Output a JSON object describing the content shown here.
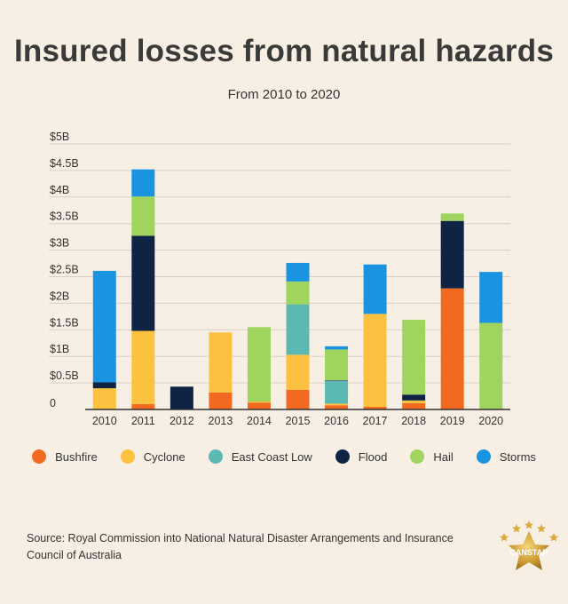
{
  "header": {
    "title": "Insured losses from natural hazards",
    "subtitle": "From 2010 to 2020"
  },
  "footer": {
    "source": "Source: Royal Commission into National Natural Disaster Arrangements and Insurance Council of Australia"
  },
  "logo": {
    "text": "CANSTAR"
  },
  "colors": {
    "background": "#f7efe3",
    "grid": "#d8d0c5",
    "axis": "#333333"
  },
  "chart_data": {
    "type": "bar",
    "stacked": true,
    "title": "Insured losses from natural hazards",
    "subtitle": "From 2010 to 2020",
    "categories": [
      "2010",
      "2011",
      "2012",
      "2013",
      "2014",
      "2015",
      "2016",
      "2017",
      "2018",
      "2019",
      "2020"
    ],
    "ylim": [
      0,
      5
    ],
    "yticks": [
      {
        "value": 0,
        "label": "0"
      },
      {
        "value": 0.5,
        "label": "$0.5B"
      },
      {
        "value": 1,
        "label": "$1B"
      },
      {
        "value": 1.5,
        "label": "$1.5B"
      },
      {
        "value": 2,
        "label": "$2B"
      },
      {
        "value": 2.5,
        "label": "$2.5B"
      },
      {
        "value": 3,
        "label": "$3B"
      },
      {
        "value": 3.5,
        "label": "$3.5B"
      },
      {
        "value": 4,
        "label": "$4B"
      },
      {
        "value": 4.5,
        "label": "$4.5B"
      },
      {
        "value": 5,
        "label": "$5B"
      }
    ],
    "grid": true,
    "legend": "bottom",
    "series": [
      {
        "name": "Bushfire",
        "color": "#f26a21",
        "values": [
          0,
          0.1,
          0,
          0.32,
          0.13,
          0.37,
          0.08,
          0.05,
          0.12,
          2.28,
          0
        ]
      },
      {
        "name": "Cyclone",
        "color": "#fbc13f",
        "values": [
          0.4,
          1.38,
          0,
          1.13,
          0.02,
          0.66,
          0.03,
          1.75,
          0.05,
          0,
          0
        ]
      },
      {
        "name": "East Coast Low",
        "color": "#5cb8b2",
        "values": [
          0,
          0,
          0,
          0,
          0,
          0.95,
          0.43,
          0,
          0,
          0,
          0
        ]
      },
      {
        "name": "Flood",
        "color": "#0f2445",
        "values": [
          0.11,
          1.79,
          0.43,
          0,
          0,
          0,
          0.01,
          0,
          0.11,
          1.27,
          0
        ]
      },
      {
        "name": "Hail",
        "color": "#9fd45f",
        "values": [
          0,
          0.74,
          0,
          0,
          1.4,
          0.43,
          0.58,
          0,
          1.41,
          0.14,
          1.63
        ]
      },
      {
        "name": "Storms",
        "color": "#1a93e0",
        "values": [
          2.1,
          0.51,
          0,
          0,
          0,
          0.35,
          0.06,
          0.93,
          0,
          0,
          0.96
        ]
      }
    ]
  }
}
